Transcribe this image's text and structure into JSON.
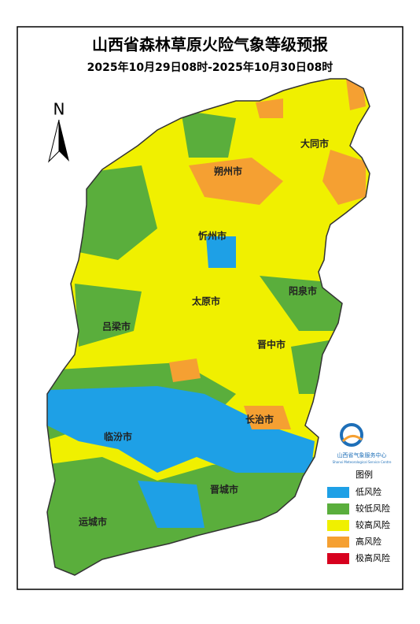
{
  "header": {
    "title": "山西省森林草原火险气象等级预报",
    "subtitle": "2025年10月29日08时-2025年10月30日08时"
  },
  "north": "N",
  "cities": [
    {
      "label": "大同市"
    },
    {
      "label": "朔州市"
    },
    {
      "label": "忻州市"
    },
    {
      "label": "阳泉市"
    },
    {
      "label": "太原市"
    },
    {
      "label": "吕梁市"
    },
    {
      "label": "晋中市"
    },
    {
      "label": "长治市"
    },
    {
      "label": "临汾市"
    },
    {
      "label": "晋城市"
    },
    {
      "label": "运城市"
    }
  ],
  "organization": {
    "name": "山西省气象服务中心",
    "english": "Shanxi Meteorological Service Centre"
  },
  "legend": {
    "title": "图例",
    "items": [
      {
        "label": "低风险",
        "color": "#1ea0e6"
      },
      {
        "label": "较低风险",
        "color": "#5aae3c"
      },
      {
        "label": "较高风险",
        "color": "#f0f000"
      },
      {
        "label": "高风险",
        "color": "#f5a032"
      },
      {
        "label": "极高风险",
        "color": "#d7001e"
      }
    ]
  }
}
